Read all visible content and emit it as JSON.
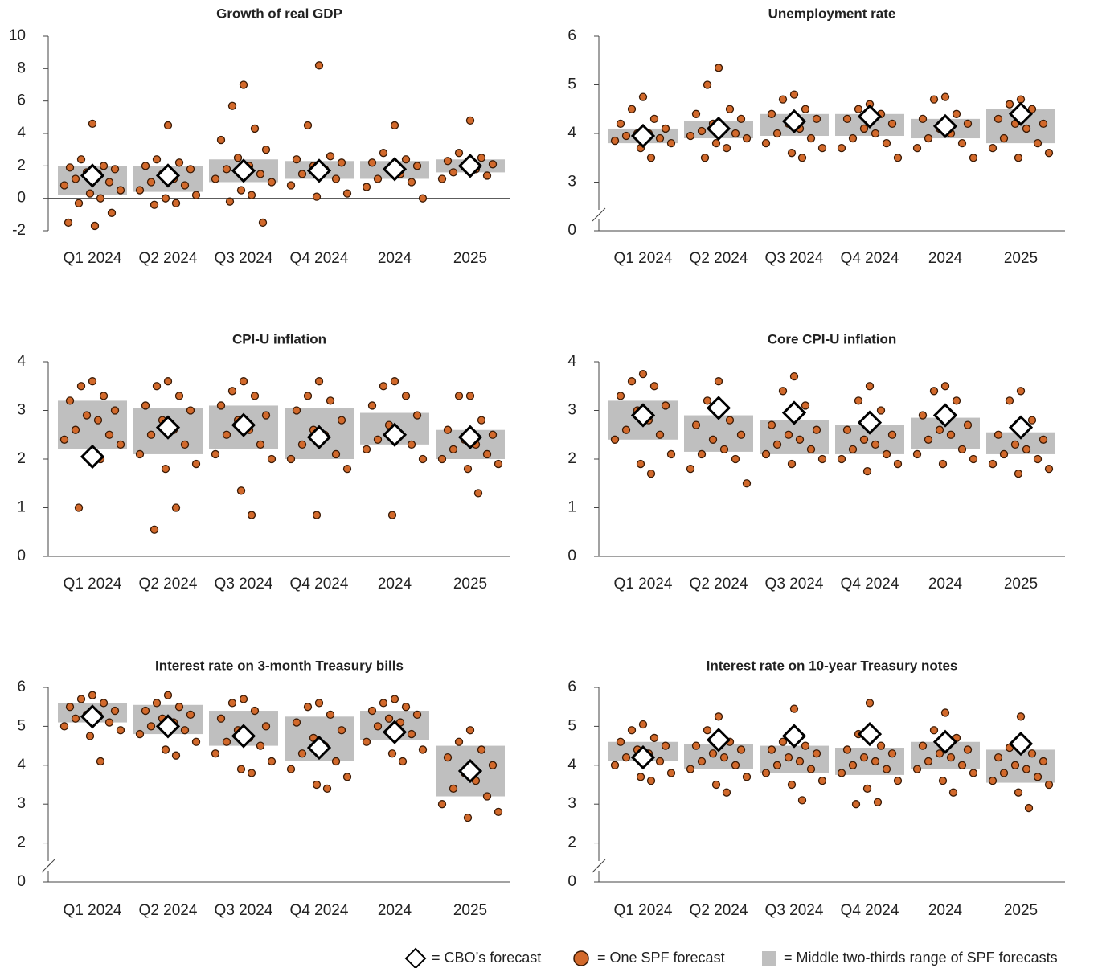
{
  "chart_data": [
    {
      "type": "strip",
      "title": "Growth of real GDP",
      "categories": [
        "Q1 2024",
        "Q2 2024",
        "Q3 2024",
        "Q4 2024",
        "2024",
        "2025"
      ],
      "ylim": [
        -2,
        10
      ],
      "yticks": [
        -2,
        0,
        2,
        4,
        6,
        8,
        10
      ],
      "zero_line": true,
      "range_low": [
        0.2,
        0.4,
        1.0,
        1.2,
        1.2,
        1.6
      ],
      "range_high": [
        2.0,
        2.0,
        2.4,
        2.3,
        2.3,
        2.4
      ],
      "cbo": [
        1.4,
        1.4,
        1.7,
        1.7,
        1.8,
        2.0
      ],
      "spf": [
        [
          4.6,
          2.4,
          2.0,
          1.9,
          1.8,
          1.6,
          1.5,
          1.2,
          1.0,
          0.8,
          0.5,
          0.3,
          0,
          -0.3,
          -0.9,
          -1.5,
          -1.7
        ],
        [
          4.5,
          2.4,
          2.2,
          2.0,
          1.8,
          1.5,
          1.2,
          1.0,
          0.8,
          0.5,
          0.2,
          0,
          -0.3,
          -0.4
        ],
        [
          7.0,
          5.7,
          4.3,
          3.6,
          3.0,
          2.5,
          2.0,
          1.8,
          1.5,
          1.2,
          1.0,
          0.5,
          0.2,
          -0.2,
          -1.5
        ],
        [
          8.2,
          4.5,
          2.6,
          2.4,
          2.2,
          2.0,
          1.8,
          1.5,
          1.2,
          0.8,
          0.3,
          0.1
        ],
        [
          4.5,
          2.8,
          2.4,
          2.2,
          2.0,
          1.8,
          1.5,
          1.2,
          1.0,
          0.7,
          0
        ],
        [
          4.8,
          2.8,
          2.5,
          2.3,
          2.1,
          2.0,
          1.8,
          1.6,
          1.4,
          1.2
        ]
      ]
    },
    {
      "type": "strip",
      "title": "Unemployment rate",
      "categories": [
        "Q1 2024",
        "Q2 2024",
        "Q3 2024",
        "Q4 2024",
        "2024",
        "2025"
      ],
      "ylim": [
        0,
        6
      ],
      "axis_break": [
        0,
        2
      ],
      "yticks": [
        0,
        3,
        4,
        5,
        6
      ],
      "range_low": [
        3.8,
        3.9,
        3.95,
        3.95,
        3.9,
        3.8
      ],
      "range_high": [
        4.1,
        4.25,
        4.4,
        4.4,
        4.3,
        4.5
      ],
      "cbo": [
        3.95,
        4.1,
        4.25,
        4.35,
        4.15,
        4.4
      ],
      "spf": [
        [
          4.75,
          4.5,
          4.3,
          4.2,
          4.1,
          4.0,
          4.0,
          3.95,
          3.9,
          3.85,
          3.8,
          3.7,
          3.5
        ],
        [
          5.35,
          5.0,
          4.5,
          4.4,
          4.3,
          4.2,
          4.1,
          4.05,
          4.0,
          3.95,
          3.9,
          3.8,
          3.7,
          3.5
        ],
        [
          4.8,
          4.7,
          4.5,
          4.4,
          4.3,
          4.2,
          4.1,
          4.0,
          3.9,
          3.8,
          3.7,
          3.6,
          3.5
        ],
        [
          4.6,
          4.5,
          4.4,
          4.3,
          4.2,
          4.1,
          4.0,
          3.9,
          3.8,
          3.7,
          3.5
        ],
        [
          4.75,
          4.7,
          4.4,
          4.3,
          4.2,
          4.1,
          4.0,
          3.9,
          3.8,
          3.7,
          3.5
        ],
        [
          4.7,
          4.6,
          4.5,
          4.3,
          4.2,
          4.2,
          4.1,
          3.9,
          3.8,
          3.7,
          3.6,
          3.5
        ]
      ]
    },
    {
      "type": "strip",
      "title": "CPI-U inflation",
      "categories": [
        "Q1 2024",
        "Q2 2024",
        "Q3 2024",
        "Q4 2024",
        "2024",
        "2025"
      ],
      "ylim": [
        0,
        4
      ],
      "yticks": [
        0,
        1,
        2,
        3,
        4
      ],
      "range_low": [
        2.2,
        2.1,
        2.2,
        2.0,
        2.3,
        2.0
      ],
      "range_high": [
        3.2,
        3.05,
        3.1,
        3.05,
        2.95,
        2.6
      ],
      "cbo": [
        2.05,
        2.65,
        2.7,
        2.45,
        2.5,
        2.45
      ],
      "spf": [
        [
          3.6,
          3.5,
          3.3,
          3.2,
          3.0,
          2.9,
          2.8,
          2.6,
          2.5,
          2.4,
          2.3,
          2.1,
          2.0,
          1.0
        ],
        [
          3.6,
          3.5,
          3.3,
          3.1,
          3.0,
          2.8,
          2.6,
          2.5,
          2.3,
          2.1,
          1.9,
          1.8,
          1.0,
          0.55
        ],
        [
          3.6,
          3.4,
          3.3,
          3.1,
          2.9,
          2.8,
          2.6,
          2.5,
          2.3,
          2.1,
          2.0,
          1.35,
          0.85
        ],
        [
          3.6,
          3.3,
          3.2,
          3.0,
          2.8,
          2.6,
          2.5,
          2.3,
          2.1,
          2.0,
          1.8,
          0.85
        ],
        [
          3.6,
          3.5,
          3.3,
          3.1,
          2.9,
          2.7,
          2.5,
          2.4,
          2.3,
          2.2,
          2.0,
          0.85
        ],
        [
          3.3,
          3.3,
          2.8,
          2.6,
          2.5,
          2.4,
          2.3,
          2.2,
          2.1,
          2.0,
          1.9,
          1.8,
          1.3
        ]
      ]
    },
    {
      "type": "strip",
      "title": "Core CPI-U inflation",
      "categories": [
        "Q1 2024",
        "Q2 2024",
        "Q3 2024",
        "Q4 2024",
        "2024",
        "2025"
      ],
      "ylim": [
        0,
        4
      ],
      "yticks": [
        0,
        1,
        2,
        3,
        4
      ],
      "range_low": [
        2.4,
        2.15,
        2.1,
        2.1,
        2.2,
        2.1
      ],
      "range_high": [
        3.2,
        2.9,
        2.8,
        2.7,
        2.85,
        2.55
      ],
      "cbo": [
        2.9,
        3.05,
        2.95,
        2.75,
        2.9,
        2.65
      ],
      "spf": [
        [
          3.75,
          3.6,
          3.5,
          3.3,
          3.1,
          3.0,
          2.8,
          2.6,
          2.5,
          2.4,
          2.1,
          1.9,
          1.7
        ],
        [
          3.6,
          3.2,
          2.8,
          2.7,
          2.5,
          2.4,
          2.2,
          2.1,
          2.0,
          1.8,
          1.5
        ],
        [
          3.7,
          3.4,
          3.1,
          2.7,
          2.6,
          2.5,
          2.4,
          2.3,
          2.2,
          2.1,
          2.0,
          1.9
        ],
        [
          3.5,
          3.2,
          3.0,
          2.6,
          2.5,
          2.4,
          2.3,
          2.2,
          2.1,
          2.0,
          1.9,
          1.75
        ],
        [
          3.5,
          3.4,
          3.2,
          2.9,
          2.7,
          2.6,
          2.5,
          2.4,
          2.2,
          2.1,
          2.0,
          1.9
        ],
        [
          3.4,
          3.2,
          2.8,
          2.5,
          2.4,
          2.3,
          2.2,
          2.1,
          2.0,
          1.9,
          1.8,
          1.7
        ]
      ]
    },
    {
      "type": "strip",
      "title": "Interest rate on 3-month Treasury bills",
      "categories": [
        "Q1 2024",
        "Q2 2024",
        "Q3 2024",
        "Q4 2024",
        "2024",
        "2025"
      ],
      "ylim": [
        0,
        6
      ],
      "axis_break": [
        0,
        1
      ],
      "yticks": [
        0,
        2,
        3,
        4,
        5,
        6
      ],
      "range_low": [
        5.1,
        4.8,
        4.5,
        4.1,
        4.65,
        3.2
      ],
      "range_high": [
        5.6,
        5.55,
        5.4,
        5.25,
        5.4,
        4.5
      ],
      "cbo": [
        5.25,
        5.0,
        4.75,
        4.45,
        4.85,
        3.85
      ],
      "spf": [
        [
          5.8,
          5.7,
          5.6,
          5.5,
          5.4,
          5.3,
          5.3,
          5.2,
          5.1,
          5.0,
          4.9,
          4.75,
          4.1
        ],
        [
          5.8,
          5.6,
          5.5,
          5.4,
          5.3,
          5.2,
          5.1,
          5.0,
          4.9,
          4.8,
          4.6,
          4.4,
          4.25
        ],
        [
          5.7,
          5.6,
          5.4,
          5.2,
          5.0,
          4.9,
          4.7,
          4.6,
          4.5,
          4.3,
          4.1,
          3.9,
          3.8
        ],
        [
          5.6,
          5.5,
          5.3,
          5.1,
          4.9,
          4.7,
          4.5,
          4.3,
          4.1,
          3.9,
          3.7,
          3.5,
          3.4
        ],
        [
          5.7,
          5.6,
          5.5,
          5.4,
          5.3,
          5.2,
          5.1,
          5.0,
          4.8,
          4.6,
          4.4,
          4.3,
          4.1
        ],
        [
          4.9,
          4.6,
          4.4,
          4.2,
          4.0,
          3.8,
          3.6,
          3.4,
          3.2,
          3.0,
          2.8,
          2.65
        ]
      ]
    },
    {
      "type": "strip",
      "title": "Interest rate on 10-year Treasury notes",
      "categories": [
        "Q1 2024",
        "Q2 2024",
        "Q3 2024",
        "Q4 2024",
        "2024",
        "2025"
      ],
      "ylim": [
        0,
        6
      ],
      "axis_break": [
        0,
        1
      ],
      "yticks": [
        0,
        2,
        3,
        4,
        5,
        6
      ],
      "range_low": [
        4.1,
        3.9,
        3.8,
        3.75,
        3.9,
        3.55
      ],
      "range_high": [
        4.6,
        4.55,
        4.5,
        4.45,
        4.6,
        4.4
      ],
      "cbo": [
        4.2,
        4.65,
        4.75,
        4.8,
        4.6,
        4.55
      ],
      "spf": [
        [
          5.05,
          4.9,
          4.7,
          4.6,
          4.5,
          4.4,
          4.3,
          4.2,
          4.1,
          4.0,
          3.8,
          3.7,
          3.6
        ],
        [
          5.25,
          4.9,
          4.6,
          4.5,
          4.4,
          4.3,
          4.2,
          4.1,
          4.0,
          3.9,
          3.7,
          3.5,
          3.3
        ],
        [
          5.45,
          4.6,
          4.5,
          4.4,
          4.3,
          4.2,
          4.1,
          4.0,
          3.9,
          3.8,
          3.6,
          3.5,
          3.1
        ],
        [
          5.6,
          4.8,
          4.5,
          4.4,
          4.3,
          4.2,
          4.1,
          4.0,
          3.9,
          3.8,
          3.6,
          3.4,
          3.05,
          3.0
        ],
        [
          5.35,
          4.9,
          4.7,
          4.5,
          4.4,
          4.3,
          4.2,
          4.1,
          4.0,
          3.9,
          3.8,
          3.6,
          3.3
        ],
        [
          5.25,
          4.45,
          4.3,
          4.2,
          4.1,
          4.0,
          3.9,
          3.8,
          3.7,
          3.6,
          3.5,
          3.3,
          2.9
        ]
      ]
    }
  ],
  "legend": {
    "cbo": "= CBO’s forecast",
    "spf": "= One SPF forecast",
    "range": "= Middle two-thirds range of SPF forecasts",
    "dot_color": "#d2692b",
    "range_color": "#bfbfbf"
  }
}
